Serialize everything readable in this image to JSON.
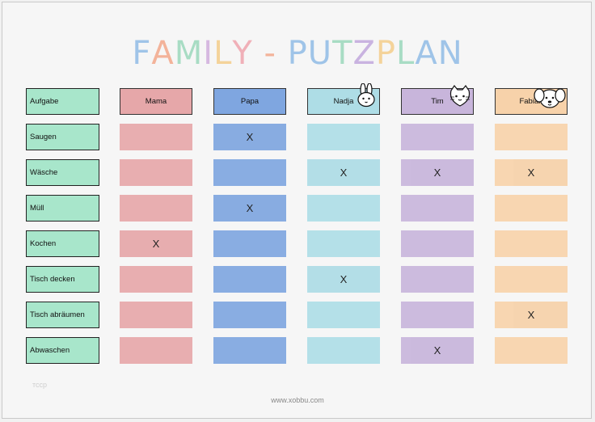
{
  "title": {
    "letters": [
      {
        "ch": "F",
        "color": "#9fc4e8"
      },
      {
        "ch": "A",
        "color": "#f3b39a"
      },
      {
        "ch": "M",
        "color": "#a8dcc4"
      },
      {
        "ch": "I",
        "color": "#d6b8e0"
      },
      {
        "ch": "L",
        "color": "#f4d39a"
      },
      {
        "ch": "Y",
        "color": "#f0b0b8"
      },
      {
        "ch": " - ",
        "color": "#f3b39a"
      },
      {
        "ch": "P",
        "color": "#9fc4e8"
      },
      {
        "ch": "U",
        "color": "#9fc4e8"
      },
      {
        "ch": "T",
        "color": "#a8dcc4"
      },
      {
        "ch": "Z",
        "color": "#c9b3e0"
      },
      {
        "ch": "P",
        "color": "#f4d39a"
      },
      {
        "ch": "L",
        "color": "#a8dcc4"
      },
      {
        "ch": "A",
        "color": "#9fc4e8"
      },
      {
        "ch": "N",
        "color": "#9fc4e8"
      }
    ]
  },
  "header": {
    "task_label": "Aufgabe",
    "people": [
      {
        "name": "Mama",
        "color": "#e6a7a9",
        "icon": null
      },
      {
        "name": "Papa",
        "color": "#7fa6e0",
        "icon": null
      },
      {
        "name": "Nadja",
        "color": "#aedde6",
        "icon": "rabbit-icon"
      },
      {
        "name": "Tim",
        "color": "#c8b5db",
        "icon": "cat-icon"
      },
      {
        "name": "Fabian",
        "color": "#f7d2aa",
        "icon": "dog-icon"
      }
    ]
  },
  "tasks": [
    {
      "label": "Saugen",
      "marks": [
        "",
        "X",
        "",
        "",
        ""
      ]
    },
    {
      "label": "Wäsche",
      "marks": [
        "",
        "",
        "X",
        "X",
        "X"
      ]
    },
    {
      "label": "Müll",
      "marks": [
        "",
        "X",
        "",
        "",
        ""
      ]
    },
    {
      "label": "Kochen",
      "marks": [
        "X",
        "",
        "",
        "",
        ""
      ]
    },
    {
      "label": "Tisch decken",
      "marks": [
        "",
        "",
        "X",
        "",
        ""
      ]
    },
    {
      "label": "Tisch abräumen",
      "marks": [
        "",
        "",
        "",
        "",
        "X"
      ]
    },
    {
      "label": "Abwaschen",
      "marks": [
        "",
        "",
        "",
        "X",
        ""
      ]
    }
  ],
  "footer_left": "тсср",
  "footer": "www.xobbu.com"
}
